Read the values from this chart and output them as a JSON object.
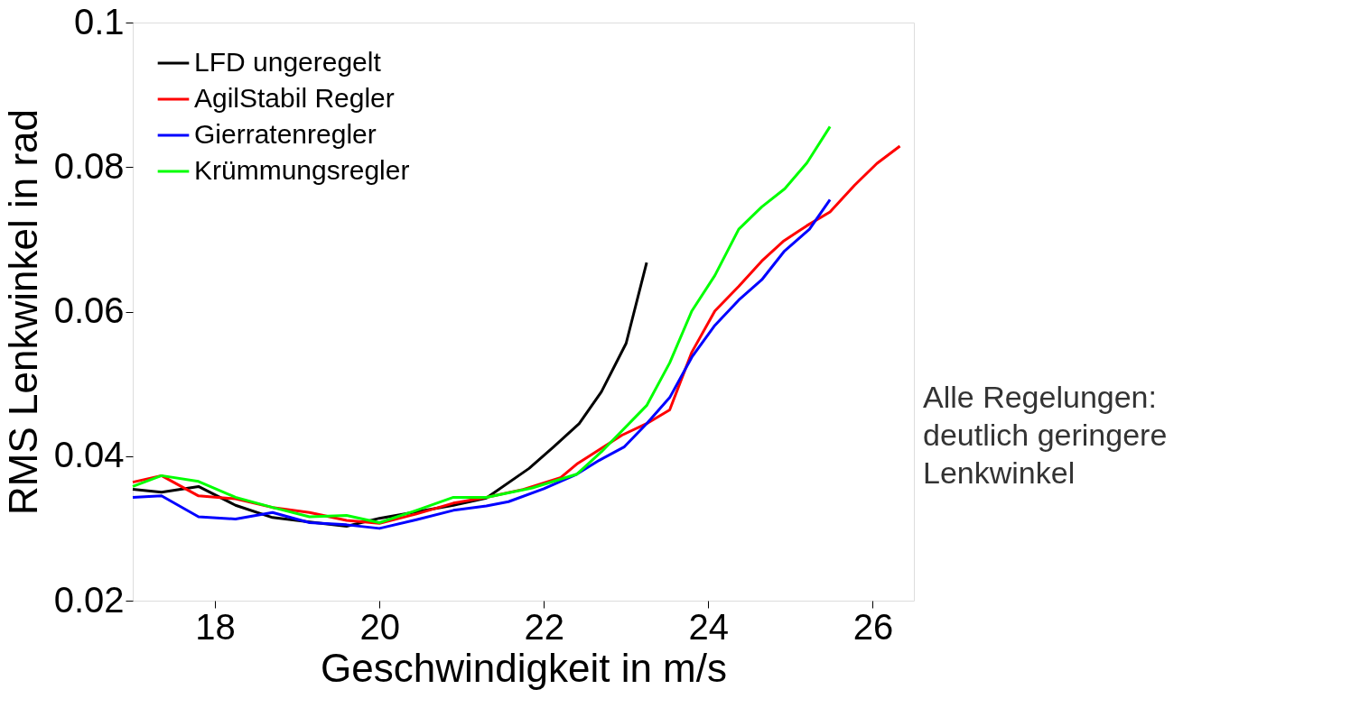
{
  "chart_data": {
    "type": "line",
    "xlabel": "Geschwindigkeit in m/s",
    "ylabel": "RMS Lenkwinkel in rad",
    "xlim": [
      17,
      26.5
    ],
    "xticks": [
      18,
      20,
      22,
      24,
      26
    ],
    "ylim": [
      0.02,
      0.1
    ],
    "yticks": [
      0.02,
      0.04,
      0.06,
      0.08,
      0.1
    ],
    "grid": false,
    "legend": "top left",
    "marker": "none",
    "line_style": "solid",
    "series": [
      {
        "name": "LFD ungeregelt",
        "color": "#000000",
        "x": [
          17.0,
          17.35,
          17.8,
          18.25,
          18.7,
          19.15,
          19.6,
          20.0,
          20.45,
          20.9,
          21.3,
          21.82,
          22.12,
          22.43,
          22.7,
          23.0,
          23.25
        ],
        "values": [
          0.0354,
          0.035,
          0.0358,
          0.0332,
          0.0315,
          0.0309,
          0.0303,
          0.0314,
          0.0323,
          0.0332,
          0.0342,
          0.0383,
          0.0413,
          0.0445,
          0.0489,
          0.0556,
          0.0668
        ]
      },
      {
        "name": "AgilStabil Regler",
        "color": "#ff0000",
        "x": [
          17.0,
          17.35,
          17.8,
          18.25,
          18.7,
          19.15,
          19.6,
          20.0,
          20.45,
          20.9,
          21.3,
          21.75,
          22.2,
          22.4,
          22.95,
          23.25,
          23.53,
          23.8,
          24.08,
          24.37,
          24.65,
          24.92,
          25.2,
          25.48,
          25.78,
          26.05,
          26.33
        ],
        "values": [
          0.0364,
          0.0373,
          0.0345,
          0.0341,
          0.0329,
          0.0322,
          0.0311,
          0.0307,
          0.032,
          0.0335,
          0.0343,
          0.0354,
          0.037,
          0.0389,
          0.0429,
          0.0445,
          0.0464,
          0.0544,
          0.0601,
          0.0635,
          0.067,
          0.0698,
          0.0719,
          0.0738,
          0.0775,
          0.0805,
          0.0829
        ]
      },
      {
        "name": "Gierratenregler",
        "color": "#0000ff",
        "x": [
          17.0,
          17.35,
          17.8,
          18.25,
          18.7,
          19.15,
          19.6,
          20.0,
          20.45,
          20.9,
          21.3,
          21.57,
          22.0,
          22.4,
          22.67,
          22.98,
          23.25,
          23.53,
          23.8,
          24.08,
          24.37,
          24.65,
          24.92,
          25.23,
          25.48
        ],
        "values": [
          0.0343,
          0.0345,
          0.0316,
          0.0313,
          0.0322,
          0.0308,
          0.0305,
          0.03,
          0.0312,
          0.0325,
          0.0331,
          0.0337,
          0.0355,
          0.0375,
          0.0394,
          0.0413,
          0.0445,
          0.0481,
          0.0537,
          0.0581,
          0.0616,
          0.0644,
          0.0683,
          0.0714,
          0.0755
        ]
      },
      {
        "name": "Krümmungsregler",
        "color": "#00ff00",
        "x": [
          17.0,
          17.35,
          17.8,
          18.25,
          18.7,
          19.15,
          19.6,
          20.0,
          20.45,
          20.9,
          21.3,
          21.86,
          22.4,
          22.7,
          23.25,
          23.53,
          23.8,
          24.08,
          24.37,
          24.65,
          24.93,
          25.2,
          25.48
        ],
        "values": [
          0.0358,
          0.0373,
          0.0365,
          0.0343,
          0.0329,
          0.0316,
          0.0318,
          0.0308,
          0.0325,
          0.0343,
          0.0343,
          0.0356,
          0.0375,
          0.0406,
          0.047,
          0.0529,
          0.0601,
          0.065,
          0.0714,
          0.0745,
          0.077,
          0.0806,
          0.0856
        ]
      }
    ],
    "annotations": [
      "Alle Regelungen:\ndeutlich geringere\nLenkwinkel"
    ]
  }
}
